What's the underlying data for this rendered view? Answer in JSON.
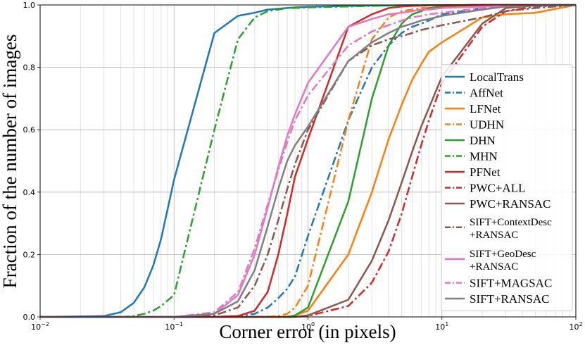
{
  "chart_data": {
    "type": "line",
    "x_label": "Corner error (in pixels)",
    "y_label": "Fraction of the number of images",
    "x_scale": "log",
    "grid": true,
    "legend": "center right",
    "xlim": [
      0.01,
      100
    ],
    "ylim": [
      0,
      1
    ],
    "xticks": [
      {
        "value": 0.01,
        "label": "10−2"
      },
      {
        "value": 0.1,
        "label": "10−1"
      },
      {
        "value": 1,
        "label": "100"
      },
      {
        "value": 10,
        "label": "101"
      },
      {
        "value": 100,
        "label": "102"
      }
    ],
    "yticks": [
      {
        "value": 0,
        "label": "0.0"
      },
      0.2,
      0.4,
      0.6,
      0.8,
      {
        "value": 1,
        "label": "1.0"
      }
    ],
    "x": [
      0.01,
      0.03,
      0.04,
      0.05,
      0.06,
      0.07,
      0.08,
      0.1,
      0.2,
      0.3,
      0.4,
      0.5,
      0.6,
      0.7,
      0.8,
      1,
      2,
      3,
      4,
      5,
      6,
      7,
      8,
      10,
      20,
      30,
      50,
      100
    ],
    "series": [
      {
        "name": "LocalTrans",
        "color": "#1f77b4",
        "dash": "solid",
        "values": [
          0,
          0.003,
          0.015,
          0.045,
          0.095,
          0.165,
          0.25,
          0.44,
          0.91,
          0.965,
          0.975,
          0.985,
          0.988,
          0.99,
          0.992,
          0.994,
          0.997,
          0.998,
          0.998,
          0.999,
          0.999,
          0.999,
          0.999,
          0.999,
          1,
          1,
          1,
          1
        ]
      },
      {
        "name": "AffNet",
        "color": "#1f77b4",
        "dash": "dashdot",
        "values": [
          0,
          0,
          0,
          0,
          0,
          0,
          0,
          0,
          0,
          0.003,
          0.01,
          0.03,
          0.06,
          0.09,
          0.13,
          0.26,
          0.63,
          0.8,
          0.87,
          0.91,
          0.93,
          0.94,
          0.95,
          0.97,
          0.99,
          0.995,
          0.998,
          1
        ]
      },
      {
        "name": "LFNet",
        "color": "#ff7f0e",
        "dash": "solid",
        "values": [
          0,
          0,
          0,
          0,
          0,
          0,
          0,
          0,
          0,
          0,
          0,
          0,
          0,
          0,
          0.005,
          0.02,
          0.2,
          0.4,
          0.57,
          0.68,
          0.76,
          0.81,
          0.85,
          0.88,
          0.96,
          0.97,
          0.975,
          1
        ]
      },
      {
        "name": "UDHN",
        "color": "#ff7f0e",
        "dash": "dashdot",
        "values": [
          0,
          0,
          0,
          0,
          0,
          0,
          0,
          0,
          0,
          0,
          0,
          0,
          0.003,
          0.01,
          0.03,
          0.1,
          0.63,
          0.89,
          0.96,
          0.98,
          0.985,
          0.99,
          0.99,
          0.993,
          0.997,
          0.998,
          0.999,
          1
        ]
      },
      {
        "name": "DHN",
        "color": "#2ca02c",
        "dash": "solid",
        "values": [
          0,
          0,
          0,
          0,
          0,
          0,
          0,
          0,
          0,
          0,
          0,
          0,
          0,
          0,
          0.005,
          0.03,
          0.37,
          0.7,
          0.87,
          0.94,
          0.97,
          0.98,
          0.99,
          0.995,
          0.998,
          0.999,
          1,
          1
        ]
      },
      {
        "name": "MHN",
        "color": "#2ca02c",
        "dash": "dashdot",
        "values": [
          0,
          0,
          0,
          0.003,
          0.01,
          0.02,
          0.035,
          0.07,
          0.6,
          0.89,
          0.96,
          0.98,
          0.985,
          0.99,
          0.99,
          0.992,
          0.995,
          0.997,
          0.998,
          0.998,
          0.999,
          0.999,
          0.999,
          0.999,
          1,
          1,
          1,
          1
        ]
      },
      {
        "name": "PFNet",
        "color": "#d62728",
        "dash": "solid",
        "values": [
          0,
          0,
          0,
          0,
          0,
          0,
          0,
          0,
          0,
          0.003,
          0.02,
          0.08,
          0.2,
          0.33,
          0.45,
          0.57,
          0.93,
          0.97,
          0.99,
          0.995,
          0.997,
          0.998,
          0.999,
          0.999,
          1,
          1,
          1,
          1
        ]
      },
      {
        "name": "PWC+ALL",
        "color": "#d62728",
        "dash": "dashdot",
        "values": [
          0,
          0,
          0,
          0,
          0,
          0,
          0,
          0,
          0,
          0,
          0,
          0,
          0,
          0,
          0,
          0.003,
          0.035,
          0.11,
          0.21,
          0.33,
          0.45,
          0.55,
          0.63,
          0.75,
          0.93,
          0.98,
          0.995,
          1
        ]
      },
      {
        "name": "PWC+RANSAC",
        "color": "#8c564b",
        "dash": "solid",
        "values": [
          0,
          0,
          0,
          0,
          0,
          0,
          0,
          0,
          0,
          0,
          0,
          0,
          0,
          0,
          0,
          0.005,
          0.055,
          0.18,
          0.31,
          0.43,
          0.53,
          0.61,
          0.67,
          0.77,
          0.94,
          0.99,
          0.998,
          1
        ]
      },
      {
        "name": "SIFT+ContextDesc\n+RANSAC",
        "color": "#8c564b",
        "dash": "dashdot",
        "values": [
          0,
          0,
          0,
          0,
          0,
          0,
          0,
          0,
          0.005,
          0.03,
          0.1,
          0.2,
          0.31,
          0.41,
          0.49,
          0.6,
          0.82,
          0.87,
          0.89,
          0.9,
          0.91,
          0.92,
          0.925,
          0.935,
          0.96,
          0.98,
          0.99,
          1
        ]
      },
      {
        "name": "SIFT+GeoDesc\n+RANSAC",
        "color": "#e377c2",
        "dash": "solid",
        "values": [
          0,
          0,
          0,
          0,
          0,
          0,
          0,
          0,
          0.01,
          0.07,
          0.2,
          0.35,
          0.48,
          0.58,
          0.65,
          0.75,
          0.93,
          0.955,
          0.97,
          0.975,
          0.98,
          0.985,
          0.985,
          0.99,
          0.995,
          0.997,
          0.999,
          1
        ]
      },
      {
        "name": "SIFT+MAGSAC",
        "color": "#e377c2",
        "dash": "dashdot",
        "values": [
          0,
          0,
          0,
          0,
          0,
          0,
          0,
          0,
          0.015,
          0.08,
          0.22,
          0.36,
          0.47,
          0.56,
          0.63,
          0.71,
          0.87,
          0.915,
          0.935,
          0.95,
          0.96,
          0.965,
          0.97,
          0.975,
          0.99,
          0.995,
          0.998,
          1
        ]
      },
      {
        "name": "SIFT+RANSAC",
        "color": "#7f7f7f",
        "dash": "solid",
        "values": [
          0,
          0,
          0,
          0,
          0,
          0,
          0,
          0,
          0.01,
          0.05,
          0.15,
          0.29,
          0.41,
          0.5,
          0.55,
          0.61,
          0.82,
          0.88,
          0.91,
          0.93,
          0.94,
          0.95,
          0.955,
          0.965,
          0.985,
          0.995,
          0.998,
          1
        ]
      }
    ]
  }
}
